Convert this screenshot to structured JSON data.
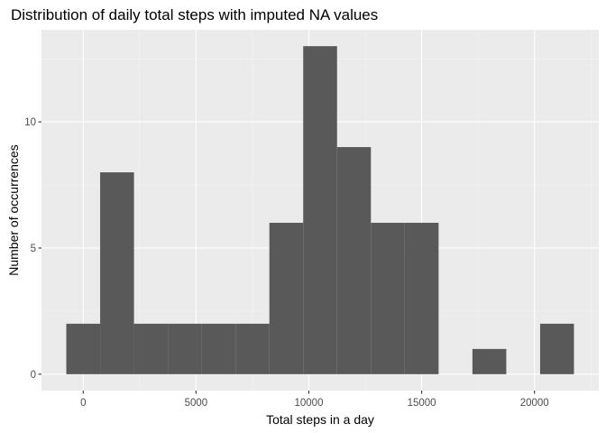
{
  "chart_data": {
    "type": "bar",
    "title": "Distribution of daily total steps with imputed NA values",
    "xlabel": "Total steps in a day",
    "ylabel": "Number of occurrences",
    "bin_width": 1500,
    "bins": [
      {
        "x0": -750,
        "x1": 750,
        "count": 2
      },
      {
        "x0": 750,
        "x1": 2250,
        "count": 8
      },
      {
        "x0": 2250,
        "x1": 3750,
        "count": 2
      },
      {
        "x0": 3750,
        "x1": 5250,
        "count": 2
      },
      {
        "x0": 5250,
        "x1": 6750,
        "count": 2
      },
      {
        "x0": 6750,
        "x1": 8250,
        "count": 2
      },
      {
        "x0": 8250,
        "x1": 9750,
        "count": 6
      },
      {
        "x0": 9750,
        "x1": 11250,
        "count": 13
      },
      {
        "x0": 11250,
        "x1": 12750,
        "count": 9
      },
      {
        "x0": 12750,
        "x1": 14250,
        "count": 6
      },
      {
        "x0": 14250,
        "x1": 15750,
        "count": 6
      },
      {
        "x0": 15750,
        "x1": 17250,
        "count": 0
      },
      {
        "x0": 17250,
        "x1": 18750,
        "count": 1
      },
      {
        "x0": 18750,
        "x1": 20250,
        "count": 0
      },
      {
        "x0": 20250,
        "x1": 21750,
        "count": 2
      }
    ],
    "xlim": [
      -1850,
      22850
    ],
    "ylim": [
      -0.65,
      13.65
    ],
    "x_ticks": [
      0,
      5000,
      10000,
      15000,
      20000
    ],
    "x_tick_labels": [
      "0",
      "5000",
      "10000",
      "15000",
      "20000"
    ],
    "y_ticks": [
      0,
      5,
      10
    ],
    "y_tick_labels": [
      "0",
      "5",
      "10"
    ],
    "grid": true,
    "legend": "none",
    "colors": {
      "panel_bg": "#ebebeb",
      "grid_major": "#ffffff",
      "grid_minor": "#f5f5f5",
      "bar_fill": "#595959",
      "tick_text": "#4d4d4d",
      "tick_mark": "#333333"
    }
  }
}
